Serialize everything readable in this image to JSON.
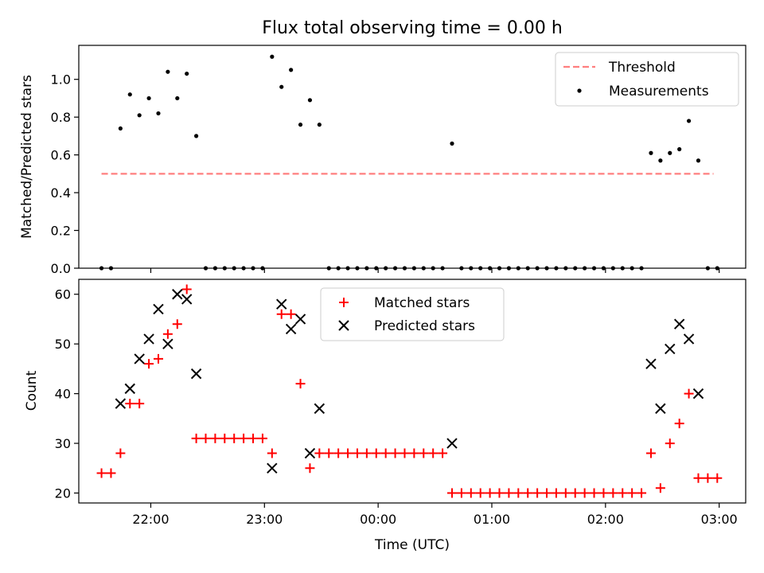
{
  "chart_data": [
    {
      "type": "scatter",
      "title": "Flux total observing time = 0.00 h",
      "xlabel": "",
      "ylabel": "Matched/Predicted stars",
      "ylim": [
        0,
        1.18
      ],
      "yticks": [
        "0.0",
        "0.2",
        "0.4",
        "0.6",
        "0.8",
        "1.0"
      ],
      "ytick_values": [
        0,
        0.2,
        0.4,
        0.6,
        0.8,
        1.0
      ],
      "legend_position": "top-right",
      "threshold": {
        "name": "Threshold",
        "value": 0.5,
        "x_start": "21:34",
        "x_end": "02:57",
        "color": "#ff7f7f"
      },
      "series": [
        {
          "name": "Measurements",
          "color": "#000000",
          "x": [
            "21:34",
            "21:39",
            "21:44",
            "21:49",
            "21:54",
            "21:59",
            "22:04",
            "22:09",
            "22:14",
            "22:19",
            "22:24",
            "22:29",
            "22:34",
            "22:39",
            "22:44",
            "22:49",
            "22:54",
            "22:59",
            "23:04",
            "23:09",
            "23:14",
            "23:19",
            "23:24",
            "23:29",
            "23:34",
            "23:39",
            "23:44",
            "23:49",
            "23:54",
            "23:59",
            "00:04",
            "00:09",
            "00:14",
            "00:19",
            "00:24",
            "00:29",
            "00:34",
            "00:39",
            "00:44",
            "00:49",
            "00:54",
            "00:59",
            "01:04",
            "01:09",
            "01:14",
            "01:19",
            "01:24",
            "01:29",
            "01:34",
            "01:39",
            "01:44",
            "01:49",
            "01:54",
            "01:59",
            "02:04",
            "02:09",
            "02:14",
            "02:19",
            "02:24",
            "02:29",
            "02:34",
            "02:39",
            "02:44",
            "02:49",
            "02:54",
            "02:59"
          ],
          "values": [
            0,
            0,
            0.74,
            0.92,
            0.81,
            0.9,
            0.82,
            1.04,
            0.9,
            1.03,
            0.7,
            0,
            0,
            0,
            0,
            0,
            0,
            0,
            1.12,
            0.96,
            1.05,
            0.76,
            0.89,
            0.76,
            0,
            0,
            0,
            0,
            0,
            0,
            0,
            0,
            0,
            0,
            0,
            0,
            0,
            0.66,
            0,
            0,
            0,
            0,
            0,
            0,
            0,
            0,
            0,
            0,
            0,
            0,
            0,
            0,
            0,
            0,
            0,
            0,
            0,
            0,
            0.61,
            0.57,
            0.61,
            0.63,
            0.78,
            0.57,
            0,
            0
          ]
        }
      ]
    },
    {
      "type": "scatter",
      "title": "",
      "xlabel": "Time (UTC)",
      "ylabel": "Count",
      "ylim": [
        18,
        63
      ],
      "yticks": [
        "20",
        "30",
        "40",
        "50",
        "60"
      ],
      "ytick_values": [
        20,
        30,
        40,
        50,
        60
      ],
      "xticks": [
        "22:00",
        "23:00",
        "00:00",
        "01:00",
        "02:00",
        "03:00"
      ],
      "xtick_values": [
        "22:00",
        "23:00",
        "00:00",
        "01:00",
        "02:00",
        "03:00"
      ],
      "xlim": [
        "21:22",
        "03:14"
      ],
      "legend_position": "top-center",
      "series": [
        {
          "name": "Matched stars",
          "marker": "plus",
          "color": "#ff0000",
          "x": [
            "21:34",
            "21:39",
            "21:44",
            "21:49",
            "21:54",
            "21:59",
            "22:04",
            "22:09",
            "22:14",
            "22:19",
            "22:24",
            "22:29",
            "22:34",
            "22:39",
            "22:44",
            "22:49",
            "22:54",
            "22:59",
            "23:04",
            "23:09",
            "23:14",
            "23:19",
            "23:24",
            "23:29",
            "23:34",
            "23:39",
            "23:44",
            "23:49",
            "23:54",
            "23:59",
            "00:04",
            "00:09",
            "00:14",
            "00:19",
            "00:24",
            "00:29",
            "00:34",
            "00:39",
            "00:44",
            "00:49",
            "00:54",
            "00:59",
            "01:04",
            "01:09",
            "01:14",
            "01:19",
            "01:24",
            "01:29",
            "01:34",
            "01:39",
            "01:44",
            "01:49",
            "01:54",
            "01:59",
            "02:04",
            "02:09",
            "02:14",
            "02:19",
            "02:24",
            "02:29",
            "02:34",
            "02:39",
            "02:44",
            "02:49",
            "02:54",
            "02:59"
          ],
          "values": [
            24,
            24,
            28,
            38,
            38,
            46,
            47,
            52,
            54,
            61,
            31,
            31,
            31,
            31,
            31,
            31,
            31,
            31,
            28,
            56,
            56,
            42,
            25,
            28,
            28,
            28,
            28,
            28,
            28,
            28,
            28,
            28,
            28,
            28,
            28,
            28,
            28,
            20,
            20,
            20,
            20,
            20,
            20,
            20,
            20,
            20,
            20,
            20,
            20,
            20,
            20,
            20,
            20,
            20,
            20,
            20,
            20,
            20,
            28,
            21,
            30,
            34,
            40,
            23,
            23,
            23
          ]
        },
        {
          "name": "Predicted stars",
          "marker": "x",
          "color": "#000000",
          "x": [
            "21:44",
            "21:49",
            "21:54",
            "21:59",
            "22:04",
            "22:09",
            "22:14",
            "22:19",
            "22:24",
            "23:04",
            "23:09",
            "23:14",
            "23:19",
            "23:24",
            "23:29",
            "00:39",
            "02:24",
            "02:29",
            "02:34",
            "02:39",
            "02:44",
            "02:49"
          ],
          "values": [
            38,
            41,
            47,
            51,
            57,
            50,
            60,
            59,
            44,
            25,
            58,
            53,
            55,
            28,
            37,
            30,
            46,
            37,
            49,
            54,
            51,
            40
          ]
        }
      ]
    }
  ]
}
